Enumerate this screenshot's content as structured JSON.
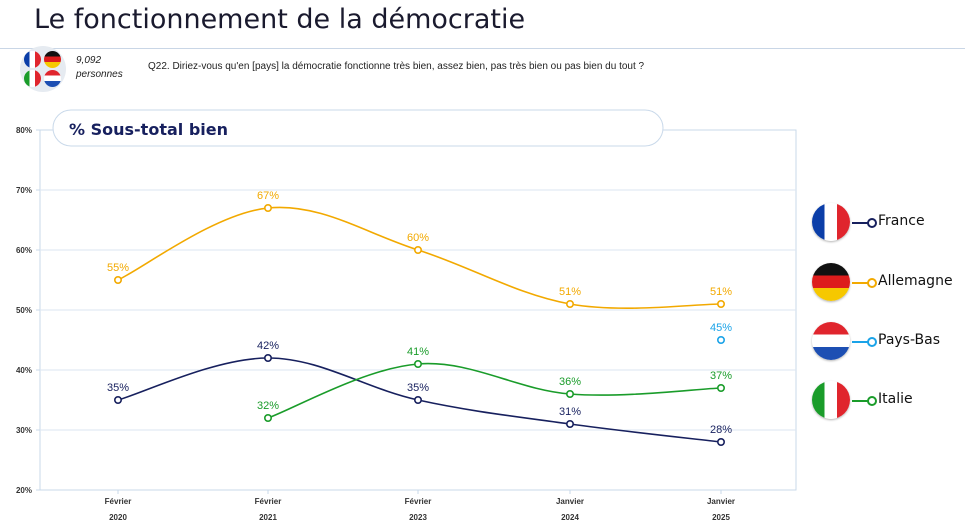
{
  "header": {
    "title": "Le fonctionnement de la démocratie",
    "sample_count": "9,092",
    "sample_unit": "personnes",
    "question": "Q22. Diriez-vous qu'en [pays] la démocratie fonctionne très bien, assez bien, pas très bien ou pas bien du tout ?"
  },
  "chart_data": {
    "type": "line",
    "title": "% Sous-total bien",
    "categories": [
      {
        "month": "Février",
        "year": "2020"
      },
      {
        "month": "Février",
        "year": "2021"
      },
      {
        "month": "Février",
        "year": "2023"
      },
      {
        "month": "Janvier",
        "year": "2024"
      },
      {
        "month": "Janvier",
        "year": "2025"
      }
    ],
    "ylim": [
      20,
      80
    ],
    "yticks": [
      "20%",
      "30%",
      "40%",
      "50%",
      "60%",
      "70%",
      "80%"
    ],
    "series": [
      {
        "name": "France",
        "color": "#17205e",
        "values": [
          35,
          42,
          35,
          31,
          28
        ],
        "labels": [
          "35%",
          "42%",
          "35%",
          "31%",
          "28%"
        ]
      },
      {
        "name": "Allemagne",
        "color": "#f2a900",
        "values": [
          55,
          67,
          60,
          51,
          51
        ],
        "labels": [
          "55%",
          "67%",
          "60%",
          "51%",
          "51%"
        ]
      },
      {
        "name": "Pays-Bas",
        "color": "#1aa3e8",
        "values": [
          null,
          null,
          null,
          null,
          45
        ],
        "labels": [
          "",
          "",
          "",
          "",
          "45%"
        ]
      },
      {
        "name": "Italie",
        "color": "#1a9c2a",
        "values": [
          null,
          32,
          41,
          36,
          37
        ],
        "labels": [
          "",
          "32%",
          "41%",
          "36%",
          "37%"
        ]
      }
    ]
  }
}
